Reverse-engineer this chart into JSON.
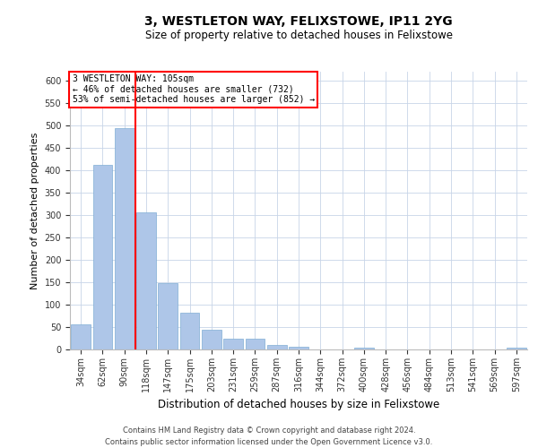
{
  "title_line1": "3, WESTLETON WAY, FELIXSTOWE, IP11 2YG",
  "title_line2": "Size of property relative to detached houses in Felixstowe",
  "xlabel": "Distribution of detached houses by size in Felixstowe",
  "ylabel": "Number of detached properties",
  "bar_color": "#aec6e8",
  "bar_edgecolor": "#7fadd4",
  "vline_color": "red",
  "annotation_title": "3 WESTLETON WAY: 105sqm",
  "annotation_line2": "← 46% of detached houses are smaller (732)",
  "annotation_line3": "53% of semi-detached houses are larger (852) →",
  "annotation_box_color": "red",
  "footnote_line1": "Contains HM Land Registry data © Crown copyright and database right 2024.",
  "footnote_line2": "Contains public sector information licensed under the Open Government Licence v3.0.",
  "categories": [
    "34sqm",
    "62sqm",
    "90sqm",
    "118sqm",
    "147sqm",
    "175sqm",
    "203sqm",
    "231sqm",
    "259sqm",
    "287sqm",
    "316sqm",
    "344sqm",
    "372sqm",
    "400sqm",
    "428sqm",
    "456sqm",
    "484sqm",
    "513sqm",
    "541sqm",
    "569sqm",
    "597sqm"
  ],
  "values": [
    57,
    412,
    494,
    307,
    148,
    82,
    44,
    25,
    25,
    10,
    7,
    0,
    0,
    5,
    0,
    0,
    0,
    0,
    0,
    0,
    5
  ],
  "ylim": [
    0,
    620
  ],
  "yticks": [
    0,
    50,
    100,
    150,
    200,
    250,
    300,
    350,
    400,
    450,
    500,
    550,
    600
  ],
  "background_color": "#ffffff",
  "grid_color": "#c8d4e8",
  "title_fontsize": 10,
  "subtitle_fontsize": 8.5,
  "ylabel_fontsize": 8,
  "xlabel_fontsize": 8.5,
  "tick_fontsize": 7,
  "footnote_fontsize": 6,
  "annot_fontsize": 7
}
